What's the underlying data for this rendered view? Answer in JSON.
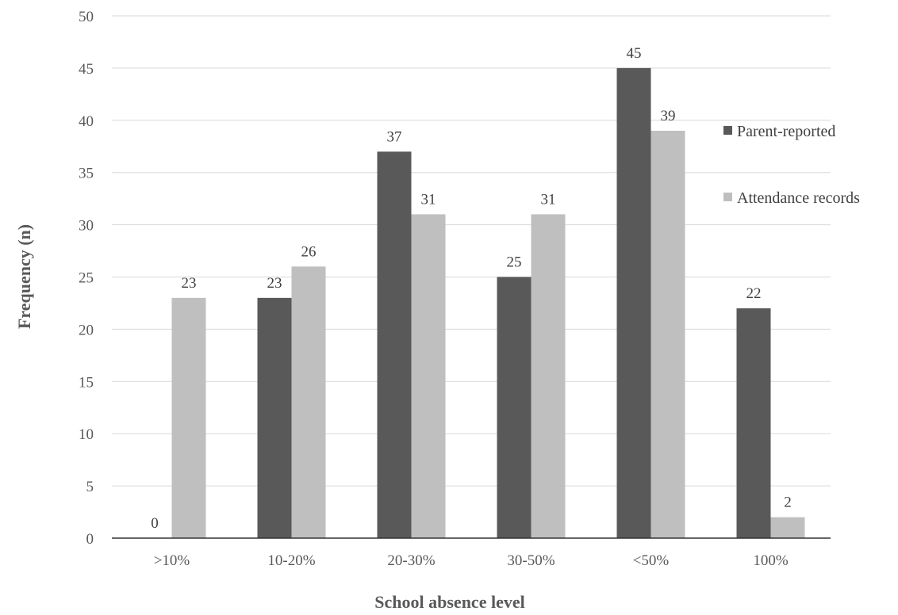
{
  "chart_data": {
    "type": "bar",
    "title": "",
    "xlabel": "School absence level",
    "ylabel": "Frequency (n)",
    "ylim": [
      0,
      50
    ],
    "yticks": [
      0,
      5,
      10,
      15,
      20,
      25,
      30,
      35,
      40,
      45,
      50
    ],
    "grid": true,
    "legend_position": "right",
    "categories": [
      ">10%",
      "10-20%",
      "20-30%",
      "30-50%",
      "<50%",
      "100%"
    ],
    "series": [
      {
        "name": "Parent-reported",
        "color": "#595959",
        "values": [
          0,
          23,
          37,
          25,
          45,
          22
        ]
      },
      {
        "name": "Attendance records",
        "color": "#bfbfbf",
        "values": [
          23,
          26,
          31,
          31,
          39,
          2
        ]
      }
    ]
  }
}
